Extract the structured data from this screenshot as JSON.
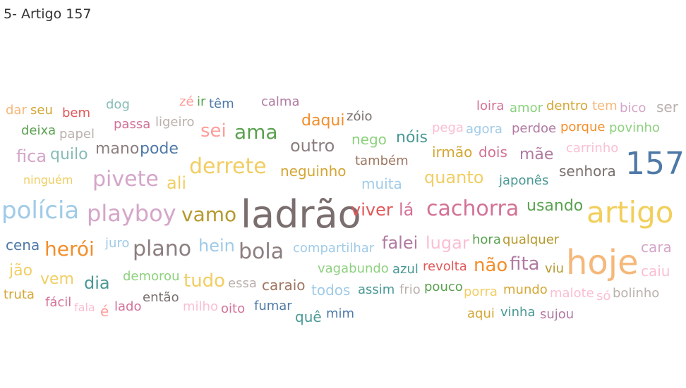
{
  "title": "5- Artigo 157",
  "chart_data": {
    "type": "wordcloud",
    "words": [
      {
        "text": "ladrão",
        "size": 54,
        "color": "#7a6e6e"
      },
      {
        "text": "hoje",
        "size": 48,
        "color": "#f5b87a"
      },
      {
        "text": "artigo",
        "size": 42,
        "color": "#f2cf5b"
      },
      {
        "text": "157",
        "size": 44,
        "color": "#4e79a7"
      },
      {
        "text": "polícia",
        "size": 34,
        "color": "#a0cbe8"
      },
      {
        "text": "playboy",
        "size": 32,
        "color": "#d4a6c8"
      },
      {
        "text": "cachorra",
        "size": 30,
        "color": "#d37295"
      },
      {
        "text": "derrete",
        "size": 30,
        "color": "#f1ce63"
      },
      {
        "text": "pivete",
        "size": 30,
        "color": "#d4a6c8"
      },
      {
        "text": "plano",
        "size": 30,
        "color": "#8c7e7e"
      },
      {
        "text": "bola",
        "size": 30,
        "color": "#8c7e7e"
      },
      {
        "text": "vamo",
        "size": 28,
        "color": "#b6992d"
      },
      {
        "text": "herói",
        "size": 28,
        "color": "#f28e2b"
      },
      {
        "text": "ama",
        "size": 28,
        "color": "#59a14f"
      },
      {
        "text": "sei",
        "size": 26,
        "color": "#ff9d9a"
      },
      {
        "text": "fita",
        "size": 26,
        "color": "#b07aa1"
      },
      {
        "text": "não",
        "size": 26,
        "color": "#f28e2b"
      },
      {
        "text": "tudo",
        "size": 26,
        "color": "#f1ce63"
      },
      {
        "text": "outro",
        "size": 24,
        "color": "#8c7e7e"
      },
      {
        "text": "viver",
        "size": 24,
        "color": "#e15759"
      },
      {
        "text": "lá",
        "size": 24,
        "color": "#d37295"
      },
      {
        "text": "hein",
        "size": 24,
        "color": "#a0cbe8"
      },
      {
        "text": "quanto",
        "size": 24,
        "color": "#f1ce63"
      },
      {
        "text": "lugar",
        "size": 24,
        "color": "#fabfd2"
      },
      {
        "text": "falei",
        "size": 24,
        "color": "#b07aa1"
      },
      {
        "text": "dia",
        "size": 24,
        "color": "#499894"
      },
      {
        "text": "ali",
        "size": 24,
        "color": "#f1ce63"
      },
      {
        "text": "fica",
        "size": 24,
        "color": "#d4a6c8"
      },
      {
        "text": "pode",
        "size": 22,
        "color": "#4e79a7"
      },
      {
        "text": "mãe",
        "size": 22,
        "color": "#b07aa1"
      },
      {
        "text": "usando",
        "size": 22,
        "color": "#59a14f"
      },
      {
        "text": "mano",
        "size": 22,
        "color": "#8c7e7e"
      },
      {
        "text": "jão",
        "size": 22,
        "color": "#f1ce63"
      },
      {
        "text": "vem",
        "size": 22,
        "color": "#f1ce63"
      },
      {
        "text": "quilo",
        "size": 22,
        "color": "#86bcb6"
      },
      {
        "text": "nóis",
        "size": 22,
        "color": "#499894"
      },
      {
        "text": "daqui",
        "size": 22,
        "color": "#f28e2b"
      },
      {
        "text": "cara",
        "size": 20,
        "color": "#d4a6c8"
      },
      {
        "text": "caiu",
        "size": 20,
        "color": "#fabfd2"
      },
      {
        "text": "neguinho",
        "size": 20,
        "color": "#d4a634"
      },
      {
        "text": "senhora",
        "size": 20,
        "color": "#79706e"
      },
      {
        "text": "muita",
        "size": 20,
        "color": "#a0cbe8"
      },
      {
        "text": "nego",
        "size": 20,
        "color": "#8cd17d"
      },
      {
        "text": "cena",
        "size": 20,
        "color": "#4e79a7"
      },
      {
        "text": "caraio",
        "size": 20,
        "color": "#9d7660"
      },
      {
        "text": "todos",
        "size": 20,
        "color": "#a0cbe8"
      },
      {
        "text": "irmão",
        "size": 20,
        "color": "#d4a634"
      },
      {
        "text": "dois",
        "size": 20,
        "color": "#d37295"
      },
      {
        "text": "quê",
        "size": 20,
        "color": "#499894"
      },
      {
        "text": "é",
        "size": 20,
        "color": "#ff9d9a"
      },
      {
        "text": "ser",
        "size": 20,
        "color": "#bab0ac"
      },
      {
        "text": "zóio",
        "size": 18,
        "color": "#79706e"
      },
      {
        "text": "dentro",
        "size": 18,
        "color": "#d4a634"
      },
      {
        "text": "porque",
        "size": 18,
        "color": "#f28e2b"
      },
      {
        "text": "perdoe",
        "size": 18,
        "color": "#b07aa1"
      },
      {
        "text": "povinho",
        "size": 18,
        "color": "#8cd17d"
      },
      {
        "text": "hora",
        "size": 18,
        "color": "#59a14f"
      },
      {
        "text": "qualquer",
        "size": 18,
        "color": "#b6992d"
      },
      {
        "text": "mundo",
        "size": 18,
        "color": "#d4a634"
      },
      {
        "text": "malote",
        "size": 18,
        "color": "#fabfd2"
      },
      {
        "text": "bolinho",
        "size": 18,
        "color": "#bab0ac"
      },
      {
        "text": "revolta",
        "size": 18,
        "color": "#e15759"
      },
      {
        "text": "pouco",
        "size": 18,
        "color": "#59a14f"
      },
      {
        "text": "porra",
        "size": 18,
        "color": "#f1ce63"
      },
      {
        "text": "azul",
        "size": 18,
        "color": "#499894"
      },
      {
        "text": "viu",
        "size": 18,
        "color": "#b6992d"
      },
      {
        "text": "fumar",
        "size": 18,
        "color": "#4e79a7"
      },
      {
        "text": "mim",
        "size": 18,
        "color": "#4e79a7"
      },
      {
        "text": "vinha",
        "size": 18,
        "color": "#499894"
      },
      {
        "text": "sujou",
        "size": 18,
        "color": "#b07aa1"
      },
      {
        "text": "aqui",
        "size": 18,
        "color": "#d4a634"
      },
      {
        "text": "também",
        "size": 18,
        "color": "#9d7660"
      },
      {
        "text": "japonês",
        "size": 18,
        "color": "#499894"
      },
      {
        "text": "carrinho",
        "size": 18,
        "color": "#fabfd2"
      },
      {
        "text": "loira",
        "size": 18,
        "color": "#d37295"
      },
      {
        "text": "amor",
        "size": 18,
        "color": "#8cd17d"
      },
      {
        "text": "tem",
        "size": 18,
        "color": "#f5b87a"
      },
      {
        "text": "bico",
        "size": 18,
        "color": "#d4a6c8"
      },
      {
        "text": "pega",
        "size": 18,
        "color": "#fabfd2"
      },
      {
        "text": "agora",
        "size": 18,
        "color": "#a0cbe8"
      },
      {
        "text": "calma",
        "size": 18,
        "color": "#b07aa1"
      },
      {
        "text": "têm",
        "size": 18,
        "color": "#4e79a7"
      },
      {
        "text": "zé",
        "size": 18,
        "color": "#ff9d9a"
      },
      {
        "text": "ir",
        "size": 18,
        "color": "#59a14f"
      },
      {
        "text": "dog",
        "size": 18,
        "color": "#86bcb6"
      },
      {
        "text": "passa",
        "size": 18,
        "color": "#d37295"
      },
      {
        "text": "ligeiro",
        "size": 18,
        "color": "#bab0ac"
      },
      {
        "text": "bem",
        "size": 18,
        "color": "#e15759"
      },
      {
        "text": "dar",
        "size": 18,
        "color": "#f5b87a"
      },
      {
        "text": "seu",
        "size": 18,
        "color": "#d4a634"
      },
      {
        "text": "deixa",
        "size": 18,
        "color": "#59a14f"
      },
      {
        "text": "papel",
        "size": 18,
        "color": "#bab0ac"
      },
      {
        "text": "ninguém",
        "size": 16,
        "color": "#f1ce63"
      },
      {
        "text": "juro",
        "size": 18,
        "color": "#a0cbe8"
      },
      {
        "text": "compartilhar",
        "size": 18,
        "color": "#a0cbe8"
      },
      {
        "text": "vagabundo",
        "size": 18,
        "color": "#8cd17d"
      },
      {
        "text": "demorou",
        "size": 18,
        "color": "#8cd17d"
      },
      {
        "text": "essa",
        "size": 18,
        "color": "#bab0ac"
      },
      {
        "text": "assim",
        "size": 18,
        "color": "#499894"
      },
      {
        "text": "frio",
        "size": 18,
        "color": "#bab0ac"
      },
      {
        "text": "só",
        "size": 18,
        "color": "#fabfd2"
      },
      {
        "text": "truta",
        "size": 18,
        "color": "#d4a634"
      },
      {
        "text": "fácil",
        "size": 18,
        "color": "#d37295"
      },
      {
        "text": "fala",
        "size": 16,
        "color": "#fabfd2"
      },
      {
        "text": "lado",
        "size": 18,
        "color": "#d37295"
      },
      {
        "text": "então",
        "size": 18,
        "color": "#79706e"
      },
      {
        "text": "milho",
        "size": 18,
        "color": "#fabfd2"
      },
      {
        "text": "oito",
        "size": 18,
        "color": "#d37295"
      }
    ]
  }
}
